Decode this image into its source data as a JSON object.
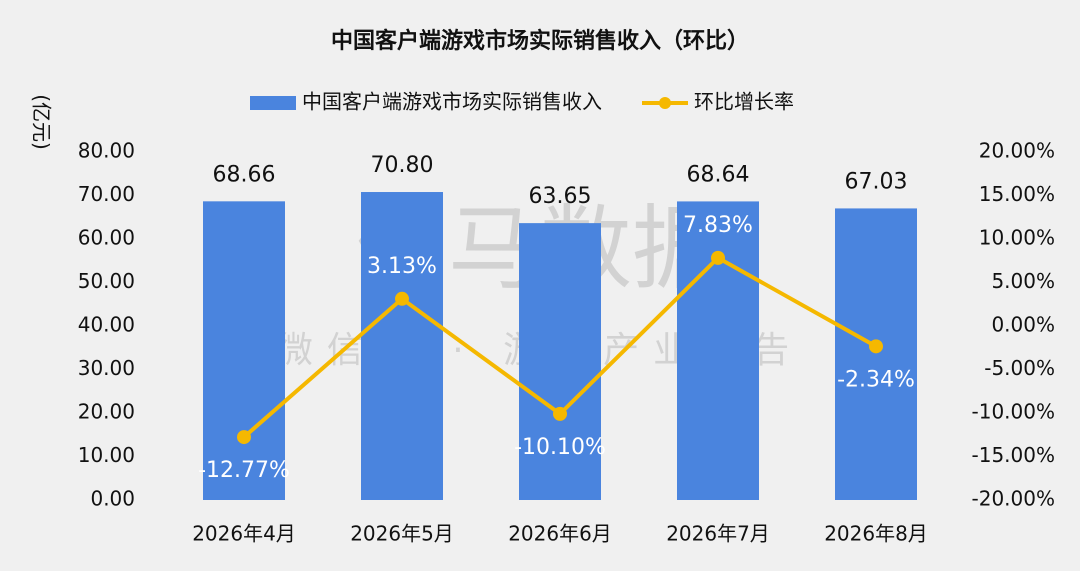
{
  "chart_data": {
    "type": "bar-line",
    "title": "中国客户端游戏市场实际销售收入（环比）",
    "y_label": "(亿元)",
    "watermark": "伽马数据",
    "watermark_sub": "微信号 · 游戏产业报告",
    "categories": [
      "2026年4月",
      "2026年5月",
      "2026年6月",
      "2026年7月",
      "2026年8月"
    ],
    "series": [
      {
        "name": "中国客户端游戏市场实际销售收入",
        "type": "bar",
        "color": "#4a84de",
        "values": [
          68.66,
          70.8,
          63.65,
          68.64,
          67.03
        ],
        "value_labels": [
          "68.66",
          "70.80",
          "63.65",
          "68.64",
          "67.03"
        ]
      },
      {
        "name": "环比增长率",
        "type": "line",
        "axis": "y2",
        "color": "#f5b800",
        "values": [
          -12.77,
          3.13,
          -10.1,
          7.83,
          -2.34
        ],
        "value_labels": [
          "-12.77%",
          "3.13%",
          "-10.10%",
          "7.83%",
          "-2.34%"
        ]
      }
    ],
    "ylim": [
      0,
      80
    ],
    "yticks": [
      {
        "value": 0,
        "label": "0.00"
      },
      {
        "value": 10,
        "label": "10.00"
      },
      {
        "value": 20,
        "label": "20.00"
      },
      {
        "value": 30,
        "label": "30.00"
      },
      {
        "value": 40,
        "label": "40.00"
      },
      {
        "value": 50,
        "label": "50.00"
      },
      {
        "value": 60,
        "label": "60.00"
      },
      {
        "value": 70,
        "label": "70.00"
      },
      {
        "value": 80,
        "label": "80.00"
      }
    ],
    "y2lim": [
      -20,
      20
    ],
    "y2ticks": [
      {
        "value": -20,
        "label": "-20.00%"
      },
      {
        "value": -15,
        "label": "-15.00%"
      },
      {
        "value": -10,
        "label": "-10.00%"
      },
      {
        "value": -5,
        "label": "-5.00%"
      },
      {
        "value": 0,
        "label": "0.00%"
      },
      {
        "value": 5,
        "label": "5.00%"
      },
      {
        "value": 10,
        "label": "10.00%"
      },
      {
        "value": 15,
        "label": "15.00%"
      },
      {
        "value": 20,
        "label": "20.00%"
      }
    ],
    "legend": "top",
    "grid": false
  }
}
